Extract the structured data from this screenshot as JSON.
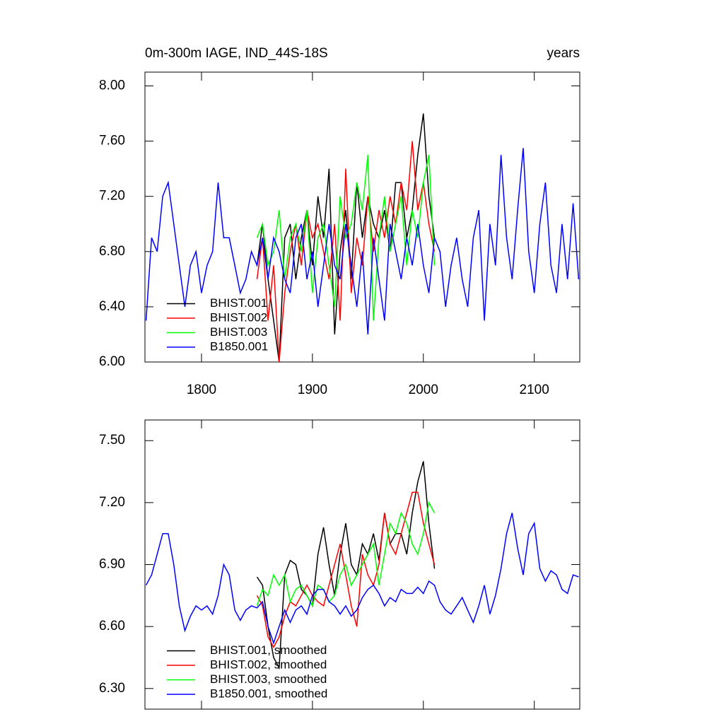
{
  "chart_data": [
    {
      "type": "line",
      "title": "0m-300m IAGE, IND_44S-18S",
      "unit_label": "years",
      "x": [
        1750,
        1755,
        1760,
        1765,
        1770,
        1775,
        1780,
        1785,
        1790,
        1795,
        1800,
        1805,
        1810,
        1815,
        1820,
        1825,
        1830,
        1835,
        1840,
        1845,
        1850,
        1855,
        1860,
        1865,
        1870,
        1875,
        1880,
        1885,
        1890,
        1895,
        1900,
        1905,
        1910,
        1915,
        1920,
        1925,
        1930,
        1935,
        1940,
        1945,
        1950,
        1955,
        1960,
        1965,
        1970,
        1975,
        1980,
        1985,
        1990,
        1995,
        2000,
        2005,
        2010,
        2015,
        2020,
        2025,
        2030,
        2035,
        2040,
        2045,
        2050,
        2055,
        2060,
        2065,
        2070,
        2075,
        2080,
        2085,
        2090,
        2095,
        2100,
        2105,
        2110,
        2115,
        2120,
        2125,
        2130,
        2135,
        2140
      ],
      "xlim": [
        1749,
        2141
      ],
      "xticks": [
        1800,
        1900,
        2000,
        2100
      ],
      "ylim": [
        6.0,
        8.1
      ],
      "yticks": [
        {
          "value": 6,
          "label": "6.00"
        },
        {
          "value": 6.4,
          "label": "6.40"
        },
        {
          "value": 6.8,
          "label": "6.80"
        },
        {
          "value": 7.2,
          "label": "7.20"
        },
        {
          "value": 7.6,
          "label": "7.60"
        },
        {
          "value": 8,
          "label": "8.00"
        }
      ],
      "legend": "lower left",
      "series": [
        {
          "name": "BHIST.001",
          "color": "#000000",
          "values": [
            null,
            null,
            null,
            null,
            null,
            null,
            null,
            null,
            null,
            null,
            null,
            null,
            null,
            null,
            null,
            null,
            null,
            null,
            null,
            null,
            6.7,
            7.0,
            6.6,
            6.3,
            6.0,
            6.9,
            7.0,
            6.6,
            6.9,
            7.1,
            6.7,
            7.2,
            6.9,
            7.4,
            6.2,
            6.8,
            7.1,
            6.6,
            7.3,
            6.9,
            7.2,
            7.0,
            6.9,
            7.1,
            6.8,
            7.3,
            7.3,
            6.9,
            7.1,
            7.5,
            7.8,
            7.2,
            6.9,
            null,
            null,
            null,
            null,
            null,
            null,
            null,
            null,
            null,
            null,
            null,
            null,
            null,
            null,
            null,
            null,
            null,
            null,
            null,
            null,
            null,
            null,
            null,
            null,
            null,
            null
          ]
        },
        {
          "name": "BHIST.002",
          "color": "#ff0000",
          "values": [
            null,
            null,
            null,
            null,
            null,
            null,
            null,
            null,
            null,
            null,
            null,
            null,
            null,
            null,
            null,
            null,
            null,
            null,
            null,
            null,
            6.6,
            6.9,
            6.3,
            6.7,
            6.0,
            6.5,
            6.8,
            7.0,
            6.7,
            7.1,
            6.9,
            7.0,
            6.8,
            6.6,
            7.0,
            6.3,
            7.4,
            6.5,
            6.9,
            6.7,
            7.2,
            6.8,
            7.1,
            6.9,
            7.2,
            7.0,
            7.3,
            7.1,
            7.6,
            7.1,
            7.3,
            7.0,
            6.8,
            null,
            null,
            null,
            null,
            null,
            null,
            null,
            null,
            null,
            null,
            null,
            null,
            null,
            null,
            null,
            null,
            null,
            null,
            null,
            null,
            null,
            null,
            null,
            null,
            null,
            null
          ]
        },
        {
          "name": "BHIST.003",
          "color": "#00ff00",
          "values": [
            null,
            null,
            null,
            null,
            null,
            null,
            null,
            null,
            null,
            null,
            null,
            null,
            null,
            null,
            null,
            null,
            null,
            null,
            null,
            null,
            6.9,
            7.0,
            6.7,
            6.8,
            7.1,
            6.6,
            6.9,
            7.0,
            6.8,
            7.1,
            6.5,
            6.9,
            7.0,
            6.7,
            6.4,
            7.2,
            6.9,
            7.0,
            7.3,
            7.1,
            7.5,
            6.3,
            6.9,
            7.2,
            6.8,
            7.0,
            7.2,
            6.7,
            7.1,
            6.9,
            7.3,
            7.5,
            6.7,
            null,
            null,
            null,
            null,
            null,
            null,
            null,
            null,
            null,
            null,
            null,
            null,
            null,
            null,
            null,
            null,
            null,
            null,
            null,
            null,
            null,
            null,
            null,
            null,
            null,
            null
          ]
        },
        {
          "name": "B1850.001",
          "color": "#0000ff",
          "values": [
            6.3,
            6.9,
            6.8,
            7.2,
            7.3,
            7.0,
            6.7,
            6.4,
            6.7,
            6.8,
            6.5,
            6.7,
            6.8,
            7.3,
            6.9,
            6.9,
            6.7,
            6.5,
            6.6,
            6.8,
            6.7,
            6.9,
            6.6,
            6.9,
            6.8,
            6.6,
            6.5,
            6.9,
            7.0,
            6.6,
            6.8,
            6.4,
            6.7,
            7.0,
            6.7,
            6.6,
            7.0,
            6.7,
            6.4,
            6.8,
            6.2,
            6.9,
            6.6,
            6.3,
            7.0,
            6.8,
            6.6,
            6.9,
            6.7,
            7.0,
            6.7,
            6.5,
            6.9,
            6.8,
            6.4,
            6.7,
            6.9,
            6.6,
            6.4,
            6.9,
            7.1,
            6.3,
            7.0,
            6.7,
            7.5,
            6.9,
            6.6,
            7.1,
            7.55,
            6.8,
            6.5,
            7.0,
            7.3,
            6.7,
            6.5,
            7.0,
            6.6,
            7.15,
            6.6
          ]
        }
      ]
    },
    {
      "type": "line",
      "x": [
        1750,
        1755,
        1760,
        1765,
        1770,
        1775,
        1780,
        1785,
        1790,
        1795,
        1800,
        1805,
        1810,
        1815,
        1820,
        1825,
        1830,
        1835,
        1840,
        1845,
        1850,
        1855,
        1860,
        1865,
        1870,
        1875,
        1880,
        1885,
        1890,
        1895,
        1900,
        1905,
        1910,
        1915,
        1920,
        1925,
        1930,
        1935,
        1940,
        1945,
        1950,
        1955,
        1960,
        1965,
        1970,
        1975,
        1980,
        1985,
        1990,
        1995,
        2000,
        2005,
        2010,
        2015,
        2020,
        2025,
        2030,
        2035,
        2040,
        2045,
        2050,
        2055,
        2060,
        2065,
        2070,
        2075,
        2080,
        2085,
        2090,
        2095,
        2100,
        2105,
        2110,
        2115,
        2120,
        2125,
        2130,
        2135,
        2140
      ],
      "xlim": [
        1749,
        2141
      ],
      "xticks": [
        1800,
        1900,
        2000,
        2100
      ],
      "ylim": [
        6.2,
        7.6
      ],
      "yticks": [
        {
          "value": 6.3,
          "label": "6.30"
        },
        {
          "value": 6.6,
          "label": "6.60"
        },
        {
          "value": 6.9,
          "label": "6.90"
        },
        {
          "value": 7.2,
          "label": "7.20"
        },
        {
          "value": 7.5,
          "label": "7.50"
        }
      ],
      "legend": "lower left",
      "series": [
        {
          "name": "BHIST.001, smoothed",
          "color": "#000000",
          "values": [
            null,
            null,
            null,
            null,
            null,
            null,
            null,
            null,
            null,
            null,
            null,
            null,
            null,
            null,
            null,
            null,
            null,
            null,
            null,
            null,
            6.84,
            6.8,
            6.6,
            6.45,
            6.4,
            6.85,
            6.92,
            6.9,
            6.78,
            6.75,
            6.7,
            6.95,
            7.08,
            6.9,
            6.75,
            6.95,
            7.1,
            6.9,
            6.85,
            7.0,
            6.95,
            7.05,
            6.92,
            7.15,
            7.0,
            7.05,
            7.05,
            6.95,
            7.15,
            7.3,
            7.4,
            7.1,
            6.88,
            null,
            null,
            null,
            null,
            null,
            null,
            null,
            null,
            null,
            null,
            null,
            null,
            null,
            null,
            null,
            null,
            null,
            null,
            null,
            null,
            null,
            null,
            null,
            null,
            null,
            null
          ]
        },
        {
          "name": "BHIST.002, smoothed",
          "color": "#ff0000",
          "values": [
            null,
            null,
            null,
            null,
            null,
            null,
            null,
            null,
            null,
            null,
            null,
            null,
            null,
            null,
            null,
            null,
            null,
            null,
            null,
            null,
            6.75,
            6.7,
            6.55,
            6.5,
            6.55,
            6.65,
            6.72,
            6.7,
            6.75,
            6.8,
            6.75,
            6.72,
            6.7,
            6.8,
            6.9,
            7.0,
            6.85,
            6.7,
            6.6,
            6.95,
            6.85,
            6.8,
            6.9,
            7.15,
            7.0,
            6.95,
            7.05,
            7.15,
            7.25,
            7.25,
            7.1,
            7.0,
            6.9,
            null,
            null,
            null,
            null,
            null,
            null,
            null,
            null,
            null,
            null,
            null,
            null,
            null,
            null,
            null,
            null,
            null,
            null,
            null,
            null,
            null,
            null,
            null,
            null,
            null,
            null
          ]
        },
        {
          "name": "BHIST.003, smoothed",
          "color": "#00ff00",
          "values": [
            null,
            null,
            null,
            null,
            null,
            null,
            null,
            null,
            null,
            null,
            null,
            null,
            null,
            null,
            null,
            null,
            null,
            null,
            null,
            null,
            6.7,
            6.78,
            6.75,
            6.85,
            6.8,
            6.85,
            6.72,
            6.78,
            6.8,
            6.75,
            6.7,
            6.8,
            6.78,
            6.72,
            6.75,
            6.85,
            6.9,
            6.8,
            6.85,
            6.9,
            6.95,
            7.0,
            6.8,
            6.95,
            7.1,
            7.05,
            7.15,
            7.1,
            7.0,
            6.95,
            7.05,
            7.2,
            7.15,
            null,
            null,
            null,
            null,
            null,
            null,
            null,
            null,
            null,
            null,
            null,
            null,
            null,
            null,
            null,
            null,
            null,
            null,
            null,
            null,
            null,
            null,
            null,
            null,
            null,
            null
          ]
        },
        {
          "name": "B1850.001, smoothed",
          "color": "#0000ff",
          "values": [
            6.8,
            6.85,
            6.95,
            7.05,
            7.05,
            6.9,
            6.7,
            6.58,
            6.65,
            6.7,
            6.68,
            6.7,
            6.66,
            6.75,
            6.9,
            6.85,
            6.68,
            6.63,
            6.68,
            6.7,
            6.69,
            6.72,
            6.6,
            6.52,
            6.6,
            6.68,
            6.62,
            6.68,
            6.7,
            6.66,
            6.75,
            6.78,
            6.78,
            6.72,
            6.7,
            6.66,
            6.7,
            6.65,
            6.68,
            6.74,
            6.78,
            6.8,
            6.76,
            6.7,
            6.74,
            6.72,
            6.78,
            6.76,
            6.76,
            6.79,
            6.76,
            6.82,
            6.8,
            6.72,
            6.68,
            6.66,
            6.7,
            6.74,
            6.68,
            6.62,
            6.7,
            6.8,
            6.66,
            6.75,
            6.88,
            7.05,
            7.15,
            6.98,
            6.85,
            7.05,
            7.1,
            6.88,
            6.82,
            6.87,
            6.85,
            6.78,
            6.76,
            6.85,
            6.84
          ]
        }
      ]
    }
  ]
}
